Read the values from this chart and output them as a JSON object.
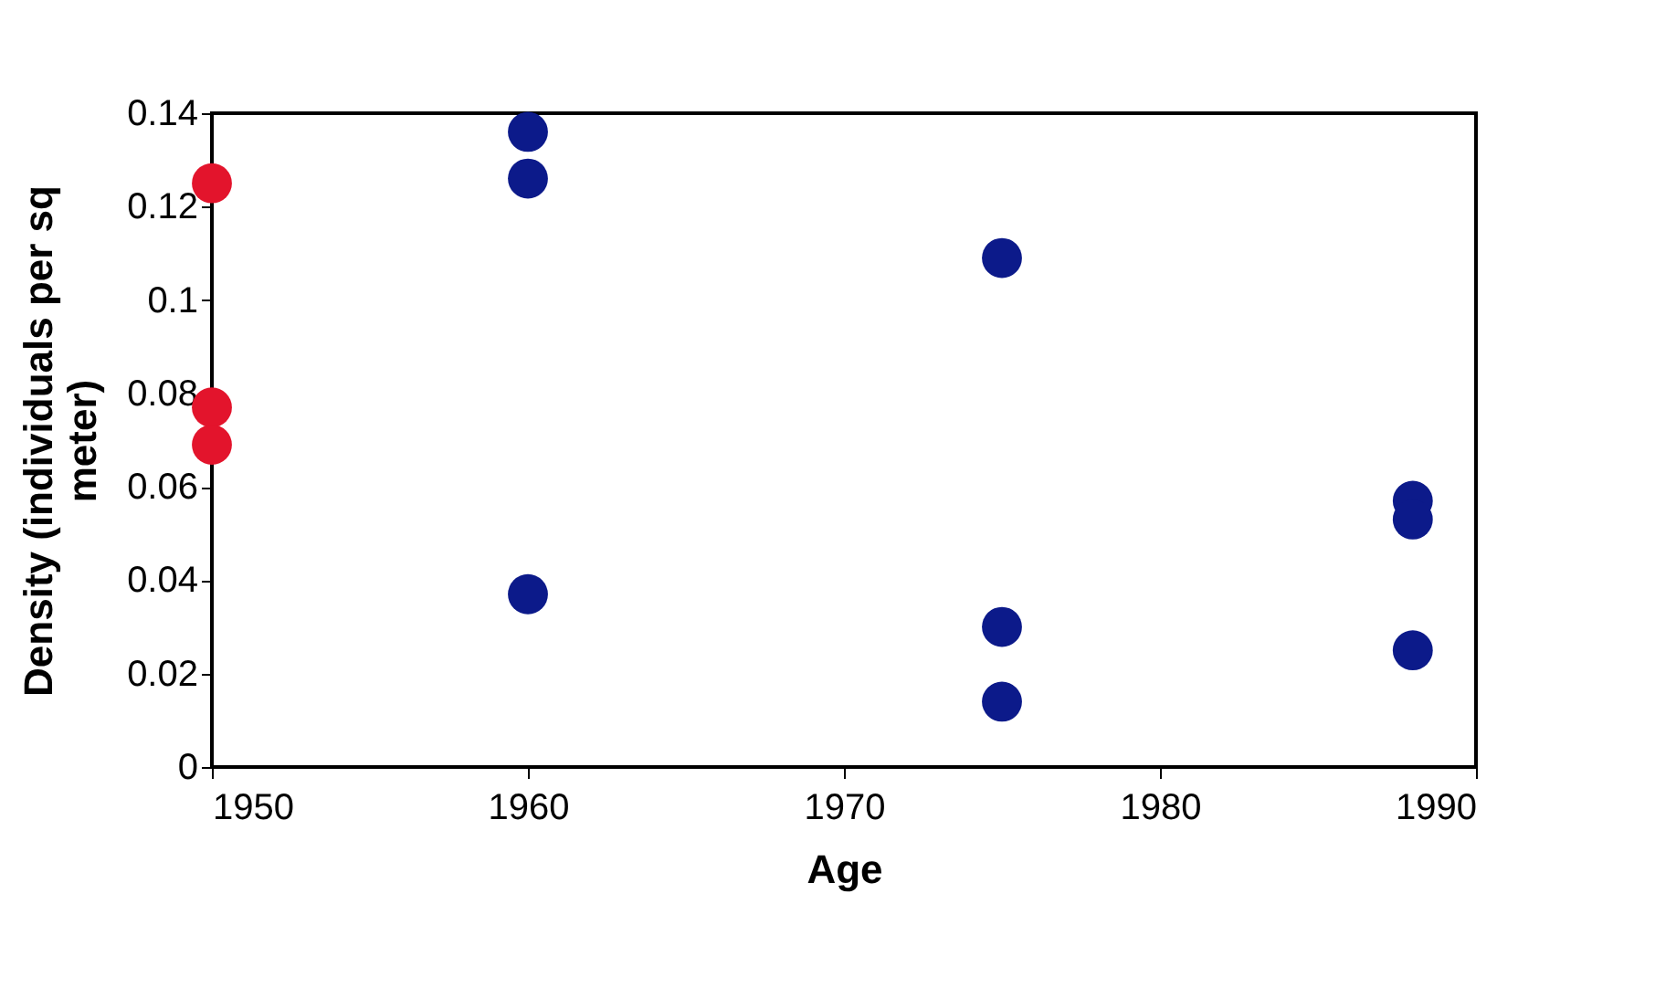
{
  "chart_data": {
    "type": "scatter",
    "xlabel": "Age",
    "ylabel": "Density (individuals per sq meter)",
    "xlim": [
      1950,
      1990
    ],
    "xticks": [
      1950,
      1960,
      1970,
      1980,
      1990
    ],
    "ylim": [
      0,
      0.14
    ],
    "yticks": [
      0,
      0.02,
      0.04,
      0.06,
      0.08,
      0.1,
      0.12,
      0.14
    ],
    "grid": false,
    "legend": false,
    "marker": "circle",
    "series": [
      {
        "color": "#e3142c",
        "x": [
          1950,
          1950,
          1950
        ],
        "values": [
          0.125,
          0.077,
          0.069
        ]
      },
      {
        "color": "#0c1a8a",
        "x": [
          1960,
          1960,
          1960,
          1975,
          1975,
          1975,
          1988,
          1988,
          1988
        ],
        "values": [
          0.136,
          0.126,
          0.037,
          0.109,
          0.03,
          0.014,
          0.057,
          0.053,
          0.025
        ]
      }
    ]
  }
}
